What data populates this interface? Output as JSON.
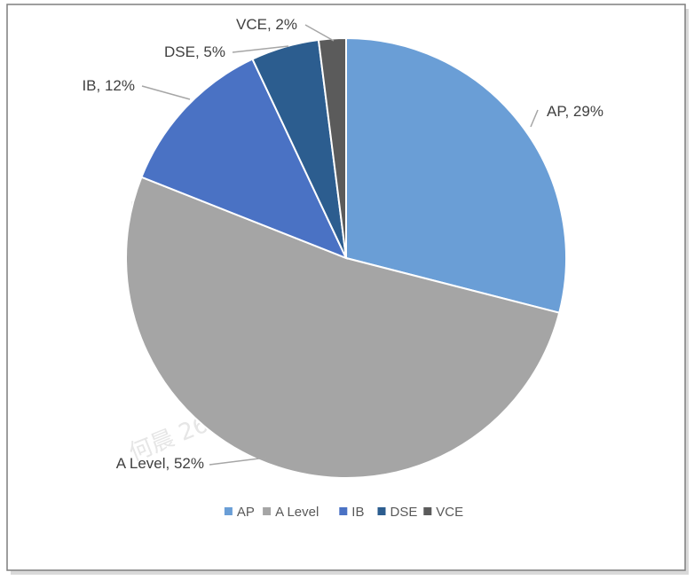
{
  "chart_data": {
    "type": "pie",
    "categories": [
      "AP",
      "A Level",
      "IB",
      "DSE",
      "VCE"
    ],
    "values": [
      29,
      52,
      12,
      5,
      2
    ],
    "colors": [
      "#6a9ed6",
      "#a5a5a5",
      "#4a72c4",
      "#2c5d8f",
      "#5b5b5b"
    ],
    "data_labels": [
      "AP, 29%",
      "A Level, 52%",
      "IB, 12%",
      "DSE, 5%",
      "VCE, 2%"
    ],
    "legend": {
      "position": "bottom",
      "entries": [
        "AP",
        "A Level",
        "IB",
        "DSE",
        "VCE"
      ]
    }
  },
  "watermark": {
    "text": "何晨 2688 2023-10-19"
  }
}
